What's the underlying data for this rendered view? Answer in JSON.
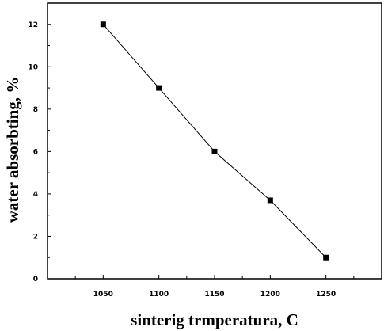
{
  "chart_data": {
    "type": "line",
    "title": "",
    "xlabel": "sinterig trmperatura, C",
    "ylabel": "water absorbting, %",
    "x": [
      1050,
      1100,
      1150,
      1200,
      1250
    ],
    "series": [
      {
        "values": [
          12,
          9,
          6,
          3.7,
          1
        ]
      }
    ],
    "x_ticks": [
      1050,
      1100,
      1150,
      1200,
      1250
    ],
    "x_tick_labels": [
      "1050",
      "1100",
      "1150",
      "1200",
      "1250"
    ],
    "y_ticks": [
      0,
      2,
      4,
      6,
      8,
      10,
      12
    ],
    "y_tick_labels": [
      "0",
      "2",
      "4",
      "6",
      "8",
      "10",
      "12"
    ],
    "xlim": [
      1000,
      1300
    ],
    "ylim": [
      0,
      13
    ],
    "grid": false,
    "marker": "square",
    "colors": {
      "line": "#000000",
      "marker": "#000000",
      "axis": "#000000"
    }
  }
}
